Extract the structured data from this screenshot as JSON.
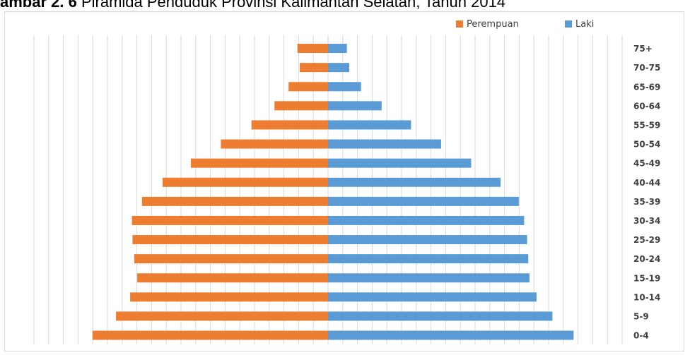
{
  "caption": {
    "prefix": "ambar 2. 6",
    "text": " Piramida Penduduk Provinsi Kalimantan Selatan, Tahun 2014"
  },
  "colors": {
    "perempuan": "#ed7d31",
    "laki": "#5b9bd5",
    "grid": "#d9d9d9"
  },
  "chart_data": {
    "type": "bar",
    "orientation": "horizontal",
    "layout": "population-pyramid",
    "title": "",
    "categories": [
      "75+",
      "70-75",
      "65-69",
      "60-64",
      "55-59",
      "50-54",
      "45-49",
      "40-44",
      "35-39",
      "30-34",
      "25-29",
      "20-24",
      "15-19",
      "10-14",
      "5-9",
      "0-4"
    ],
    "series": [
      {
        "name": "Perempuan",
        "side": "left",
        "values": [
          5.2,
          4.8,
          6.7,
          9.1,
          13.0,
          18.2,
          23.3,
          28.1,
          31.6,
          33.3,
          33.2,
          32.9,
          32.4,
          33.6,
          36.0,
          40.0
        ]
      },
      {
        "name": "Laki",
        "side": "right",
        "values": [
          3.2,
          3.6,
          5.6,
          9.1,
          14.1,
          19.2,
          24.3,
          29.3,
          32.4,
          33.3,
          33.8,
          34.0,
          34.2,
          35.4,
          38.1,
          41.7
        ]
      }
    ],
    "grid": "vertical",
    "legend_position": "top-right"
  }
}
